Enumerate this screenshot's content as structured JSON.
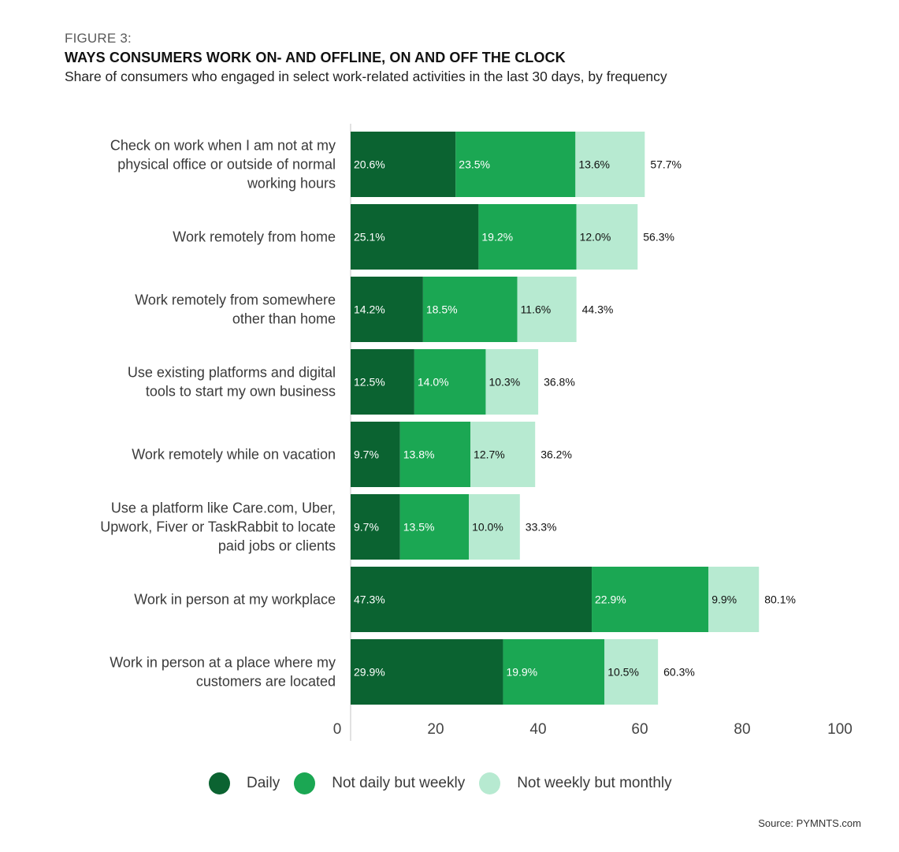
{
  "header": {
    "figure_label": "FIGURE 3:",
    "title": "WAYS CONSUMERS WORK ON- AND OFFLINE, ON AND OFF THE CLOCK",
    "subtitle": "Share of consumers who engaged in select work-related activities in the last 30 days, by frequency"
  },
  "colors": {
    "daily": "#0b6331",
    "weekly": "#1ba753",
    "monthly": "#b7ead1",
    "axis": "#d9d9d9"
  },
  "chart_data": {
    "type": "bar",
    "orientation": "horizontal",
    "stacked": true,
    "title": "WAYS CONSUMERS WORK ON- AND OFFLINE, ON AND OFF THE CLOCK",
    "subtitle": "Share of consumers who engaged in select work-related activities in the last 30 days, by frequency",
    "xlabel": "",
    "ylabel": "",
    "xlim": [
      0,
      100
    ],
    "x_ticks": [
      "0",
      "20",
      "40",
      "60",
      "80",
      "100"
    ],
    "grid": false,
    "legend_position": "bottom",
    "categories": [
      [
        "Check on work when I am not at my",
        "physical office or outside of normal",
        "working hours"
      ],
      [
        "Work remotely from home"
      ],
      [
        "Work remotely from somewhere",
        "other than home"
      ],
      [
        "Use existing platforms and digital",
        "tools to start my own business"
      ],
      [
        "Work remotely while on vacation"
      ],
      [
        "Use a platform like Care.com, Uber,",
        "Upwork, Fiver or TaskRabbit to locate",
        "paid jobs or clients"
      ],
      [
        "Work in person at my workplace"
      ],
      [
        "Work in person at a place where my",
        "customers are located"
      ]
    ],
    "series": [
      {
        "name": "Daily",
        "color_key": "daily",
        "values": [
          20.6,
          25.1,
          14.2,
          12.5,
          9.7,
          9.7,
          47.3,
          29.9
        ],
        "labels": [
          "20.6%",
          "25.1%",
          "14.2%",
          "12.5%",
          "9.7%",
          "9.7%",
          "47.3%",
          "29.9%"
        ]
      },
      {
        "name": "Not daily but weekly",
        "color_key": "weekly",
        "values": [
          23.5,
          19.2,
          18.5,
          14.0,
          13.8,
          13.5,
          22.9,
          19.9
        ],
        "labels": [
          "23.5%",
          "19.2%",
          "18.5%",
          "14.0%",
          "13.8%",
          "13.5%",
          "22.9%",
          "19.9%"
        ]
      },
      {
        "name": "Not weekly but monthly",
        "color_key": "monthly",
        "values": [
          13.6,
          12.0,
          11.6,
          10.3,
          12.7,
          10.0,
          9.9,
          10.5
        ],
        "labels": [
          "13.6%",
          "12.0%",
          "11.6%",
          "10.3%",
          "12.7%",
          "10.0%",
          "9.9%",
          "10.5%"
        ]
      }
    ],
    "totals": [
      57.7,
      56.3,
      44.3,
      36.8,
      36.2,
      33.3,
      80.1,
      60.3
    ],
    "total_labels": [
      "57.7%",
      "56.3%",
      "44.3%",
      "36.8%",
      "36.2%",
      "33.3%",
      "80.1%",
      "60.3%"
    ]
  },
  "legend": [
    {
      "label": "Daily",
      "color_key": "daily"
    },
    {
      "label": "Not daily but weekly",
      "color_key": "weekly"
    },
    {
      "label": "Not weekly but monthly",
      "color_key": "monthly"
    }
  ],
  "footer": {
    "source": "Source: PYMNTS.com"
  }
}
